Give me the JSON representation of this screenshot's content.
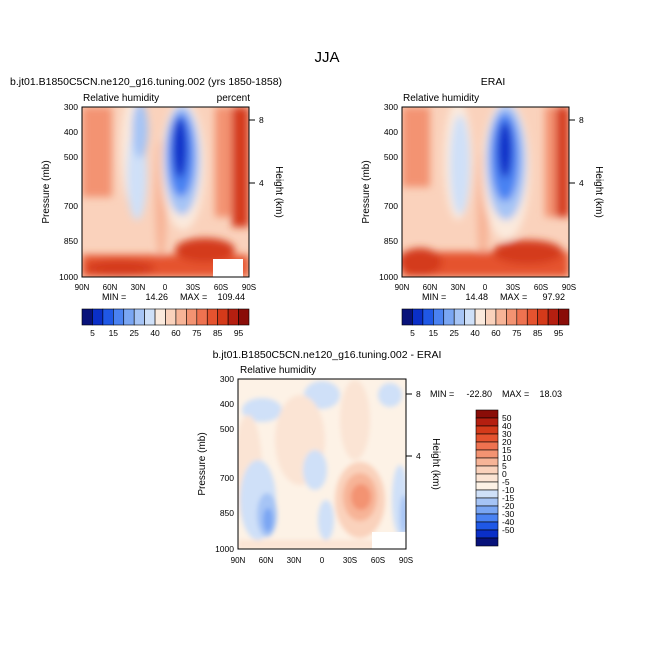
{
  "page": {
    "season_title": "JJA"
  },
  "colors": {
    "abs_scale": [
      "#08127a",
      "#0a2fc8",
      "#1f58e6",
      "#4a82f2",
      "#7aa6f3",
      "#a6c4f5",
      "#cfe0f8",
      "#fbeadd",
      "#fad2bc",
      "#f7b497",
      "#f39372",
      "#ee7250",
      "#e5532f",
      "#d43a1a",
      "#b51f10",
      "#8a0d08"
    ],
    "diff_scale": [
      "#08127a",
      "#0a2fc8",
      "#1f58e6",
      "#4a82f2",
      "#7aa6f3",
      "#a6c4f5",
      "#cfe0f8",
      "#fdf2e6",
      "#fbe4d4",
      "#fad2bc",
      "#f7b497",
      "#f39372",
      "#ee7250",
      "#e5532f",
      "#d43a1a",
      "#b51f10",
      "#8a0d08"
    ]
  },
  "chart_data": [
    {
      "type": "heatmap",
      "title": "b.jt01.B1850C5CN.ne120_g16.tuning.002 (yrs 1850-1858)",
      "variable": "Relative humidity",
      "units": "percent",
      "ylabel": "Pressure (mb)",
      "y2label": "Height (km)",
      "x_ticks": [
        "90N",
        "60N",
        "30N",
        "0",
        "30S",
        "60S",
        "90S"
      ],
      "y_ticks": [
        "300",
        "400",
        "500",
        "700",
        "850",
        "1000"
      ],
      "y2_ticks": [
        "8",
        "4"
      ],
      "min_label": "MIN =",
      "min_value": "14.26",
      "max_label": "MAX =",
      "max_value": "109.44",
      "colorbar_labels": [
        "5",
        "15",
        "25",
        "40",
        "60",
        "75",
        "85",
        "95"
      ],
      "masked_region": "60S-90S below 850 mb",
      "features": {
        "dry_core": {
          "lat": "15S",
          "pressure_mb": 500,
          "value_approx": 10
        },
        "moist_ridge_equator": {
          "lat": "5N",
          "value_approx": 70
        },
        "surface_values_approx": 80,
        "upper_polar_values_approx": 95
      }
    },
    {
      "type": "heatmap",
      "title": "ERAI",
      "variable": "Relative humidity",
      "units": "",
      "ylabel": "Pressure (mb)",
      "y2label": "Height (km)",
      "x_ticks": [
        "90N",
        "60N",
        "30N",
        "0",
        "30S",
        "60S",
        "90S"
      ],
      "y_ticks": [
        "300",
        "400",
        "500",
        "700",
        "850",
        "1000"
      ],
      "y2_ticks": [
        "8",
        "4"
      ],
      "min_label": "MIN =",
      "min_value": "14.48",
      "max_label": "MAX =",
      "max_value": "97.92",
      "colorbar_labels": [
        "5",
        "15",
        "25",
        "40",
        "60",
        "75",
        "85",
        "95"
      ],
      "features": {
        "dry_core": {
          "lat": "15S",
          "pressure_mb": 500,
          "value_approx": 12
        },
        "moist_ridge_equator": {
          "lat": "5N",
          "value_approx": 70
        },
        "surface_values_approx": 80
      }
    },
    {
      "type": "heatmap",
      "title": "b.jt01.B1850C5CN.ne120_g16.tuning.002 - ERAI",
      "variable": "Relative humidity",
      "ylabel": "Pressure (mb)",
      "y2label": "Height (km)",
      "x_ticks": [
        "90N",
        "60N",
        "30N",
        "0",
        "30S",
        "60S",
        "90S"
      ],
      "y_ticks": [
        "300",
        "400",
        "500",
        "700",
        "850",
        "1000"
      ],
      "y2_ticks": [
        "8",
        "4"
      ],
      "min_label": "MIN =",
      "min_value": "-22.80",
      "max_label": "MAX =",
      "max_value": "18.03",
      "colorbar_labels": [
        "50",
        "40",
        "30",
        "20",
        "15",
        "10",
        "5",
        "0",
        "-5",
        "-10",
        "-15",
        "-20",
        "-30",
        "-40",
        "-50"
      ],
      "features": {
        "positive_max": {
          "lat": "35S",
          "pressure_mb": 800,
          "value_approx": 18
        },
        "negative_min": {
          "lat": "60N",
          "pressure_mb": 850,
          "value_approx": -15
        }
      }
    }
  ]
}
